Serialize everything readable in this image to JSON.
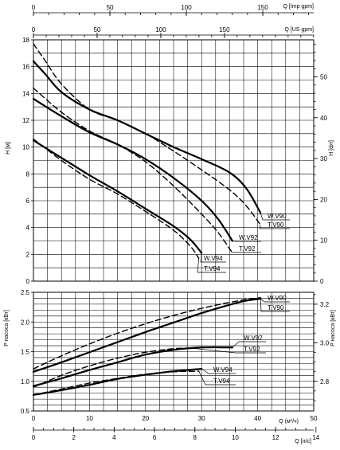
{
  "chart_data": [
    {
      "type": "line",
      "name": "head",
      "ylabel": "H [м]",
      "ylabel_right": "H [фт]",
      "xlim": [
        0,
        50
      ],
      "ylim": [
        0,
        18
      ],
      "yticks": [
        0,
        2,
        4,
        6,
        8,
        10,
        12,
        14,
        16,
        18
      ],
      "ylim_right": [
        0,
        59.06
      ],
      "yticks_right": [
        0,
        10,
        20,
        30,
        40,
        50
      ],
      "grid": true,
      "top_axes": [
        {
          "label": "Q [Imp gpm]",
          "ticks": [
            0,
            50,
            100,
            150
          ],
          "max": 183.3
        },
        {
          "label": "Q [US gpm]",
          "ticks": [
            0,
            50,
            100,
            150
          ],
          "max": 220.1
        }
      ],
      "series": [
        {
          "name": "W.V90",
          "style": "solid",
          "x": [
            0,
            2,
            5,
            10,
            15,
            20,
            25,
            30,
            35,
            38,
            40.5
          ],
          "y": [
            16.4,
            15.5,
            14.1,
            12.8,
            12,
            11,
            10,
            9.1,
            8.1,
            6.9,
            5.1
          ]
        },
        {
          "name": "T.V90",
          "style": "dashed",
          "x": [
            0,
            2,
            5,
            10,
            15,
            20,
            25,
            30,
            35,
            38,
            40.5
          ],
          "y": [
            17.7,
            16.5,
            14.7,
            12.8,
            12,
            11,
            9.7,
            8.3,
            6.8,
            5.6,
            4.2
          ]
        },
        {
          "name": "W.V92",
          "style": "solid",
          "x": [
            0,
            5,
            10,
            15,
            20,
            25,
            30,
            33,
            35.5
          ],
          "y": [
            13.6,
            12.3,
            11.1,
            10.2,
            9.1,
            7.7,
            6,
            4.6,
            3
          ]
        },
        {
          "name": "T.V92",
          "style": "dashed",
          "x": [
            0,
            5,
            10,
            15,
            20,
            25,
            30,
            33,
            35.5
          ],
          "y": [
            14.4,
            12.6,
            11.2,
            10.2,
            8.9,
            7.1,
            5,
            3.6,
            2.1
          ]
        },
        {
          "name": "W.V94",
          "style": "solid",
          "x": [
            0,
            5,
            10,
            15,
            20,
            25,
            28,
            30
          ],
          "y": [
            10.5,
            9.2,
            7.9,
            6.7,
            5.4,
            4.1,
            3.1,
            2.1
          ]
        },
        {
          "name": "T.V94",
          "style": "dashed",
          "x": [
            0,
            5,
            10,
            15,
            20,
            25,
            28,
            29.5
          ],
          "y": [
            10.6,
            9,
            7.6,
            6.5,
            5.2,
            3.8,
            2.6,
            1.7
          ]
        }
      ]
    },
    {
      "type": "line",
      "name": "power",
      "ylabel": "P насоса [кВт]",
      "ylabel_right": "P насоса [кВт]",
      "xlabel": "Q (м³/ч)",
      "xlabel2": "Q [л/с]",
      "xlim": [
        0,
        50
      ],
      "xticks": [
        0,
        10,
        20,
        30,
        40,
        50
      ],
      "xticks2": [
        0,
        2,
        4,
        6,
        8,
        10,
        12,
        14
      ],
      "x2_max": 13.889,
      "ylim": [
        0.5,
        2.5
      ],
      "yticks": [
        0.5,
        1.0,
        1.5,
        2.0,
        2.5
      ],
      "yticks_labels": [
        "0.5",
        "1.0",
        "1.5",
        "2.0",
        "2.5"
      ],
      "yticks_right": [
        2.8,
        3.0,
        3.2
      ],
      "yticks_right_pos": [
        1.0,
        1.65,
        2.3
      ],
      "grid": true,
      "series": [
        {
          "name": "W.V90",
          "style": "solid",
          "x": [
            0,
            5,
            10,
            15,
            20,
            25,
            30,
            35,
            38,
            40.5
          ],
          "y": [
            1.16,
            1.32,
            1.49,
            1.66,
            1.83,
            1.99,
            2.15,
            2.29,
            2.36,
            2.39
          ]
        },
        {
          "name": "T.V90",
          "style": "dashed",
          "x": [
            0,
            5,
            10,
            15,
            20,
            25,
            30,
            35,
            38,
            40.5
          ],
          "y": [
            1.21,
            1.43,
            1.63,
            1.81,
            1.97,
            2.11,
            2.23,
            2.33,
            2.38,
            2.41
          ]
        },
        {
          "name": "W.V92",
          "style": "solid",
          "x": [
            0,
            5,
            10,
            15,
            20,
            25,
            30,
            35.5
          ],
          "y": [
            0.92,
            1.05,
            1.19,
            1.32,
            1.45,
            1.53,
            1.57,
            1.57
          ]
        },
        {
          "name": "T.V92",
          "style": "dashed",
          "x": [
            0,
            5,
            10,
            15,
            20,
            25,
            28
          ],
          "y": [
            0.9,
            1.1,
            1.26,
            1.39,
            1.49,
            1.55,
            1.56
          ]
        },
        {
          "name": "W.V94",
          "style": "solid",
          "x": [
            0,
            5,
            10,
            15,
            20,
            25,
            30
          ],
          "y": [
            0.77,
            0.85,
            0.94,
            1.04,
            1.11,
            1.17,
            1.21
          ]
        },
        {
          "name": "T.V94",
          "style": "dashed",
          "x": [
            0,
            5,
            10,
            15,
            20,
            25,
            29.5
          ],
          "y": [
            0.77,
            0.87,
            0.97,
            1.05,
            1.12,
            1.16,
            1.17
          ]
        }
      ]
    }
  ],
  "labels": {
    "top_imp": "Q [Imp gpm]",
    "top_us": "Q [US gpm]",
    "h_m": "H [м]",
    "h_ft": "H [фт]",
    "p_left": "P насоса [кВт]",
    "p_right": "P насоса [кВт]",
    "q_m3h": "Q (м³/ч)",
    "q_ls": "Q [л/с]"
  }
}
